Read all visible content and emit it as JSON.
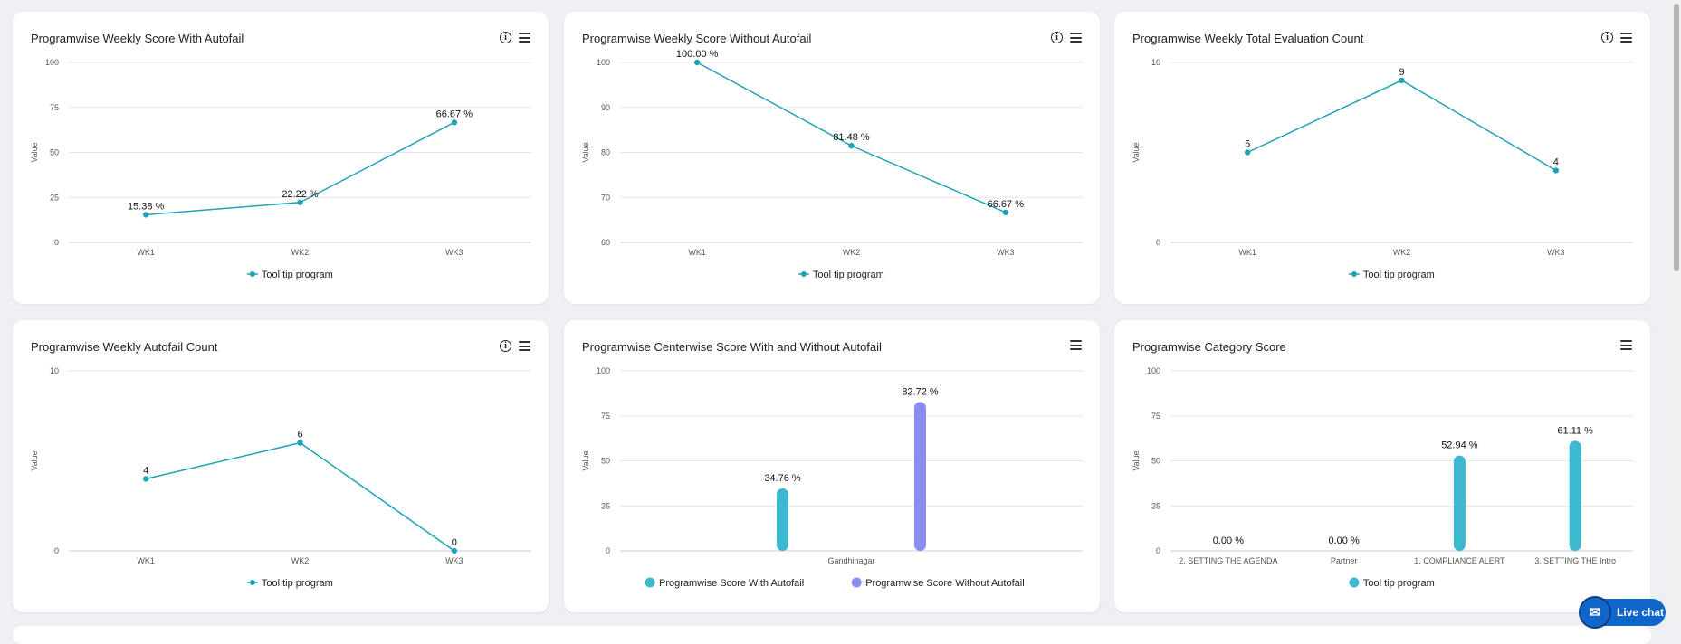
{
  "colors": {
    "line": "#1fa3b6",
    "bar_with": "#3cb8cf",
    "bar_without": "#8a8cf0",
    "grid": "#e6e6e6",
    "axis": "#c8c8d8"
  },
  "charts": [
    {
      "id": "c1",
      "title": "Programwise Weekly Score With Autofail",
      "has_info": true,
      "chart_data": {
        "type": "line",
        "categories": [
          "WK1",
          "WK2",
          "WK3"
        ],
        "series": [
          {
            "name": "Tool tip program",
            "values": [
              15.38,
              22.22,
              66.67
            ],
            "labels": [
              "15.38 %",
              "22.22 %",
              "66.67 %"
            ]
          }
        ],
        "ylabel": "Value",
        "ylim": [
          0,
          100
        ],
        "yticks": [
          "0",
          "25",
          "50",
          "75",
          "100"
        ],
        "ytick_values": [
          0,
          25,
          50,
          75,
          100
        ],
        "legend": [
          "Tool tip program"
        ]
      }
    },
    {
      "id": "c2",
      "title": "Programwise Weekly Score Without Autofail",
      "has_info": true,
      "chart_data": {
        "type": "line",
        "categories": [
          "WK1",
          "WK2",
          "WK3"
        ],
        "series": [
          {
            "name": "Tool tip program",
            "values": [
              100,
              81.48,
              66.67
            ],
            "labels": [
              "100.00 %",
              "81.48 %",
              "66.67 %"
            ]
          }
        ],
        "ylabel": "Value",
        "ylim": [
          60,
          100
        ],
        "yticks": [
          "60",
          "70",
          "80",
          "90",
          "100"
        ],
        "ytick_values": [
          60,
          70,
          80,
          90,
          100
        ],
        "legend": [
          "Tool tip program"
        ]
      }
    },
    {
      "id": "c3",
      "title": "Programwise Weekly Total Evaluation Count",
      "has_info": true,
      "chart_data": {
        "type": "line",
        "categories": [
          "WK1",
          "WK2",
          "WK3"
        ],
        "series": [
          {
            "name": "Tool tip program",
            "values": [
              5,
              9,
              4
            ],
            "labels": [
              "5",
              "9",
              "4"
            ]
          }
        ],
        "ylabel": "Value",
        "ylim": [
          0,
          10
        ],
        "yticks": [
          "0",
          "10"
        ],
        "ytick_values": [
          0,
          10
        ],
        "legend": [
          "Tool tip program"
        ]
      }
    },
    {
      "id": "c4",
      "title": "Programwise Weekly Autofail Count",
      "has_info": true,
      "chart_data": {
        "type": "line",
        "categories": [
          "WK1",
          "WK2",
          "WK3"
        ],
        "series": [
          {
            "name": "Tool tip program",
            "values": [
              4,
              6,
              0
            ],
            "labels": [
              "4",
              "6",
              "0"
            ]
          }
        ],
        "ylabel": "Value",
        "ylim": [
          0,
          10
        ],
        "yticks": [
          "0",
          "10"
        ],
        "ytick_values": [
          0,
          10
        ],
        "legend": [
          "Tool tip program"
        ]
      }
    },
    {
      "id": "c5",
      "title": "Programwise Centerwise Score With and Without Autofail",
      "has_info": false,
      "chart_data": {
        "type": "bar",
        "categories": [
          "Gandhinagar"
        ],
        "series": [
          {
            "name": "Programwise Score With Autofail",
            "values": [
              34.76
            ],
            "labels": [
              "34.76 %"
            ]
          },
          {
            "name": "Programwise Score Without Autofail",
            "values": [
              82.72
            ],
            "labels": [
              "82.72 %"
            ]
          }
        ],
        "ylabel": "Value",
        "ylim": [
          0,
          100
        ],
        "yticks": [
          "0",
          "25",
          "50",
          "75",
          "100"
        ],
        "ytick_values": [
          0,
          25,
          50,
          75,
          100
        ],
        "legend": [
          "Programwise Score With Autofail",
          "Programwise Score Without Autofail"
        ]
      }
    },
    {
      "id": "c6",
      "title": "Programwise Category Score",
      "has_info": false,
      "chart_data": {
        "type": "bar",
        "categories": [
          "2. SETTING THE AGENDA",
          "Partner",
          "1. COMPLIANCE ALERT",
          "3. SETTING THE Intro"
        ],
        "series": [
          {
            "name": "Tool tip program",
            "values": [
              0,
              0,
              52.94,
              61.11
            ],
            "labels": [
              "0.00 %",
              "0.00 %",
              "52.94 %",
              "61.11 %"
            ]
          }
        ],
        "ylabel": "Value",
        "ylim": [
          0,
          100
        ],
        "yticks": [
          "0",
          "25",
          "50",
          "75",
          "100"
        ],
        "ytick_values": [
          0,
          25,
          50,
          75,
          100
        ],
        "legend": [
          "Tool tip program"
        ]
      }
    }
  ],
  "live_chat": {
    "label": "Live chat",
    "icon": "chat-bubble-icon"
  }
}
